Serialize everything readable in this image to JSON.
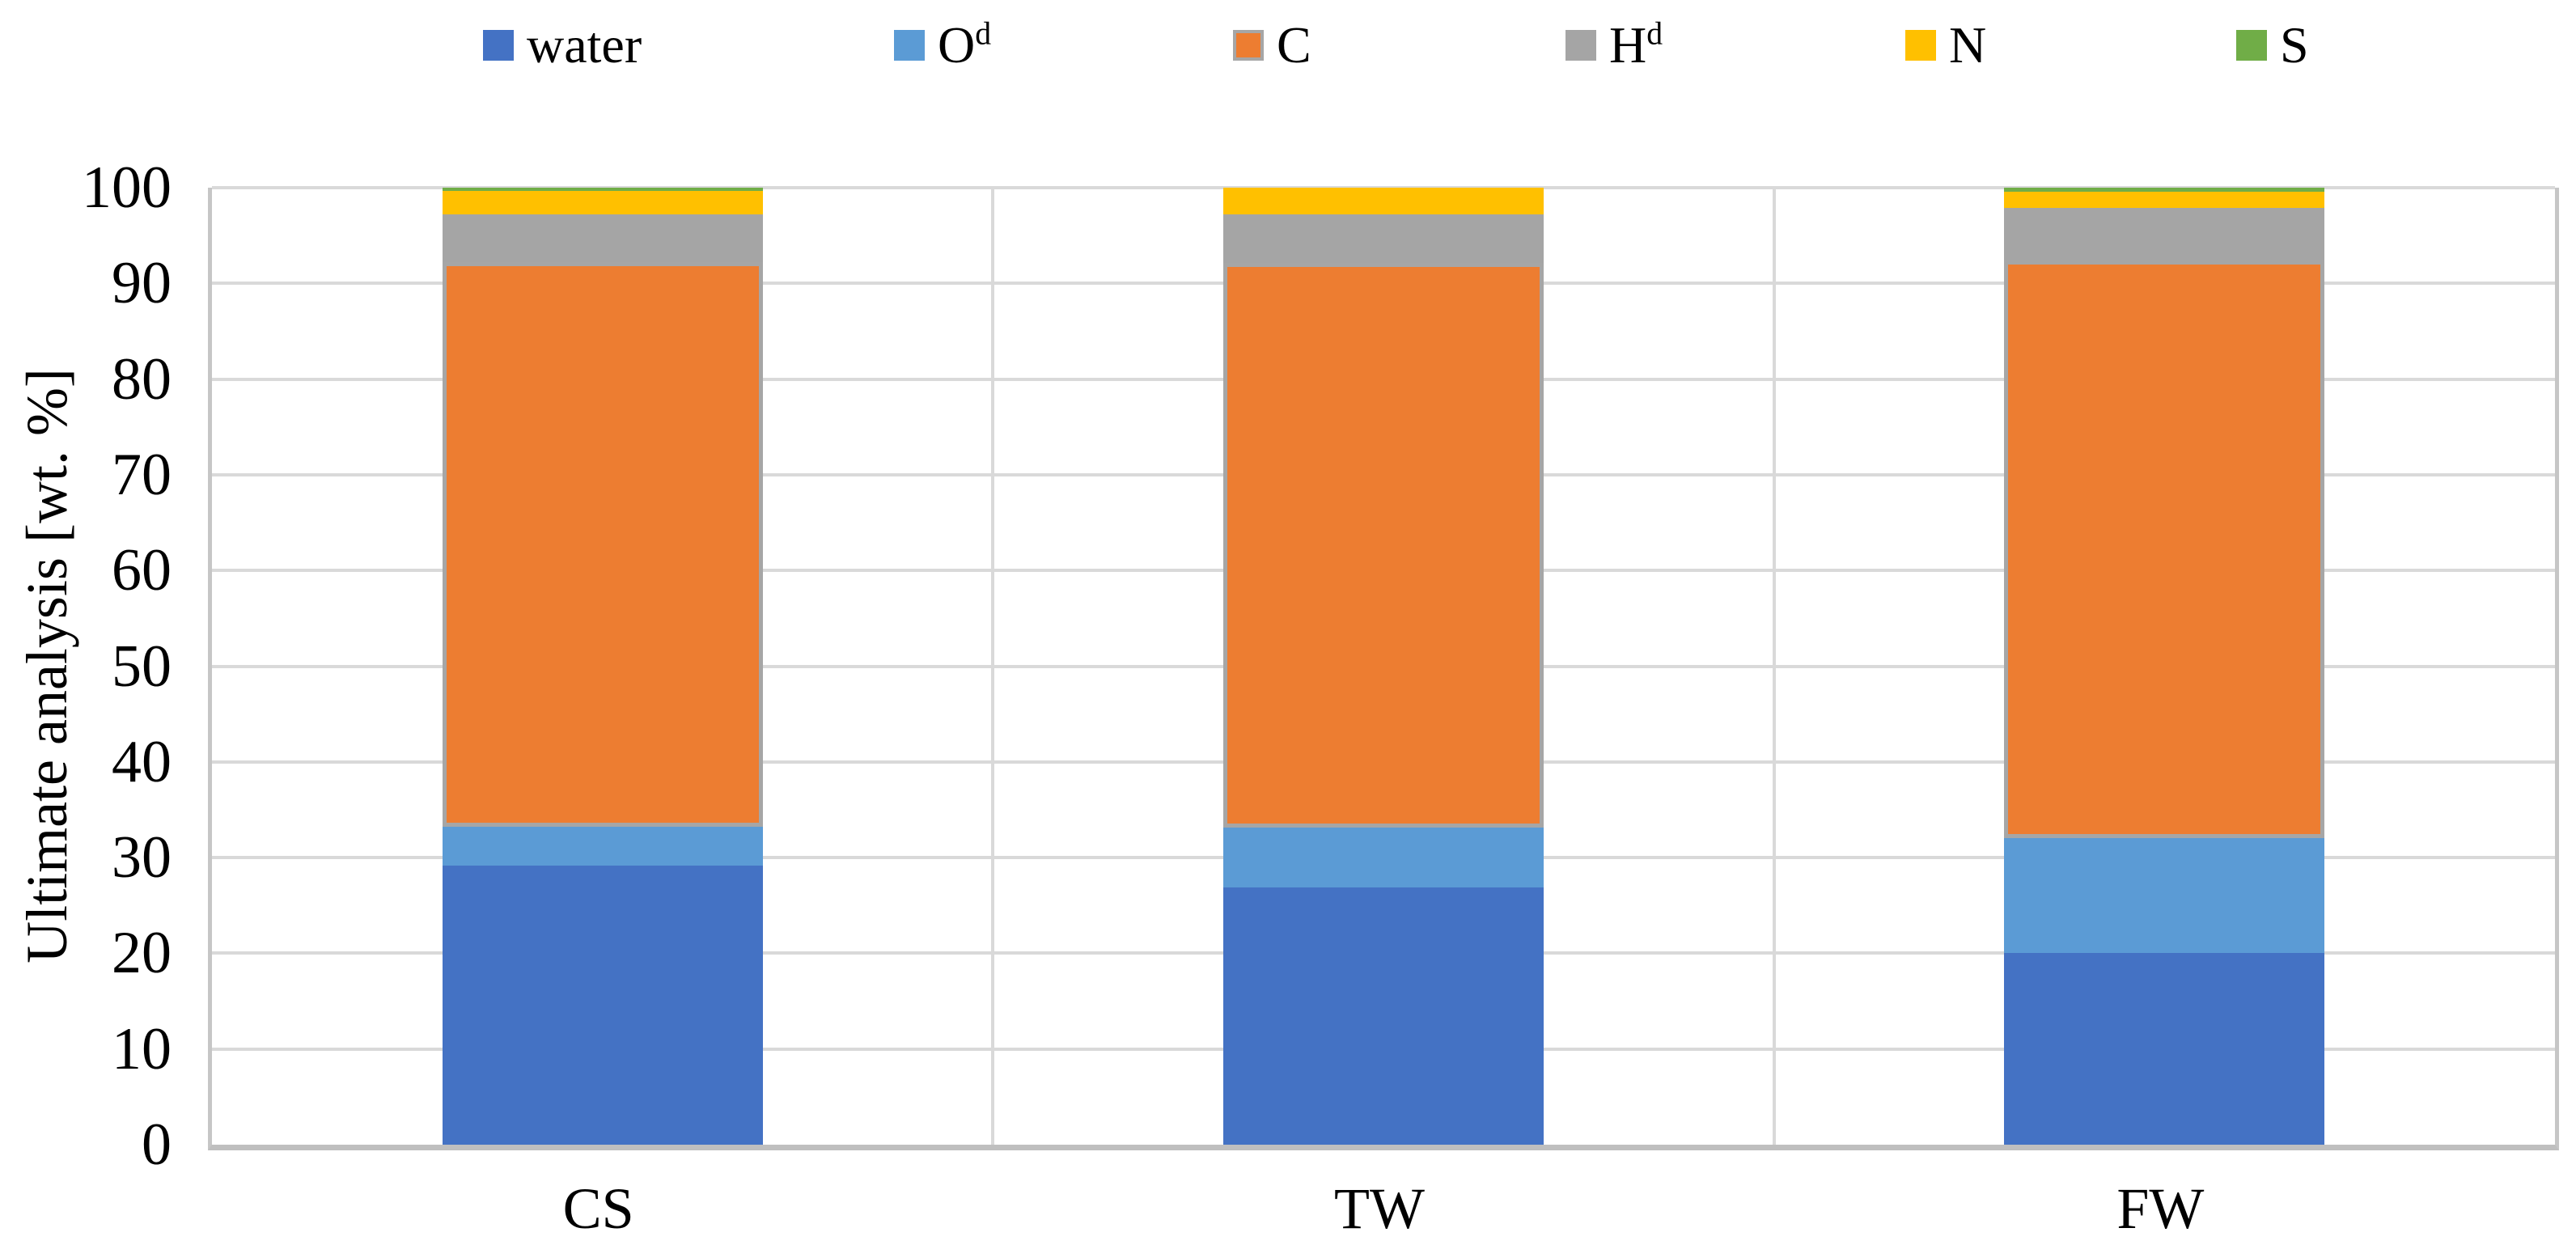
{
  "chart_data": {
    "type": "bar",
    "stacked": true,
    "title": "",
    "xlabel": "",
    "ylabel": "Ultimate analysis [wt. %]",
    "ylim": [
      0,
      100
    ],
    "yticks": [
      0,
      10,
      20,
      30,
      40,
      50,
      60,
      70,
      80,
      90,
      100
    ],
    "grid": true,
    "legend_position": "top",
    "categories": [
      "CS",
      "TW",
      "FW"
    ],
    "series": [
      {
        "name": "water",
        "label": "water",
        "sup": "",
        "color": "#4472C4",
        "values": [
          29.2,
          26.9,
          20.0
        ]
      },
      {
        "name": "Od",
        "label": "O",
        "sup": "d",
        "color": "#5B9BD5",
        "values": [
          4.0,
          6.2,
          12.0
        ]
      },
      {
        "name": "C",
        "label": "C",
        "sup": "",
        "color": "#ED7D31",
        "border_color": "#A6A6A6",
        "values": [
          59.0,
          59.0,
          60.4
        ]
      },
      {
        "name": "Hd",
        "label": "H",
        "sup": "d",
        "color": "#A5A5A5",
        "values": [
          5.0,
          5.1,
          5.5
        ]
      },
      {
        "name": "N",
        "label": "N",
        "sup": "",
        "color": "#FFC000",
        "values": [
          2.5,
          2.8,
          1.7
        ]
      },
      {
        "name": "S",
        "label": "S",
        "sup": "",
        "color": "#70AD47",
        "values": [
          0.3,
          0.0,
          0.4
        ]
      }
    ]
  },
  "colors": {
    "background": "#FFFFFF",
    "gridline": "#D9D9D9",
    "axis_line": "#BFBFBF",
    "plot_border": "#C6C6C6",
    "text": "#000000"
  }
}
